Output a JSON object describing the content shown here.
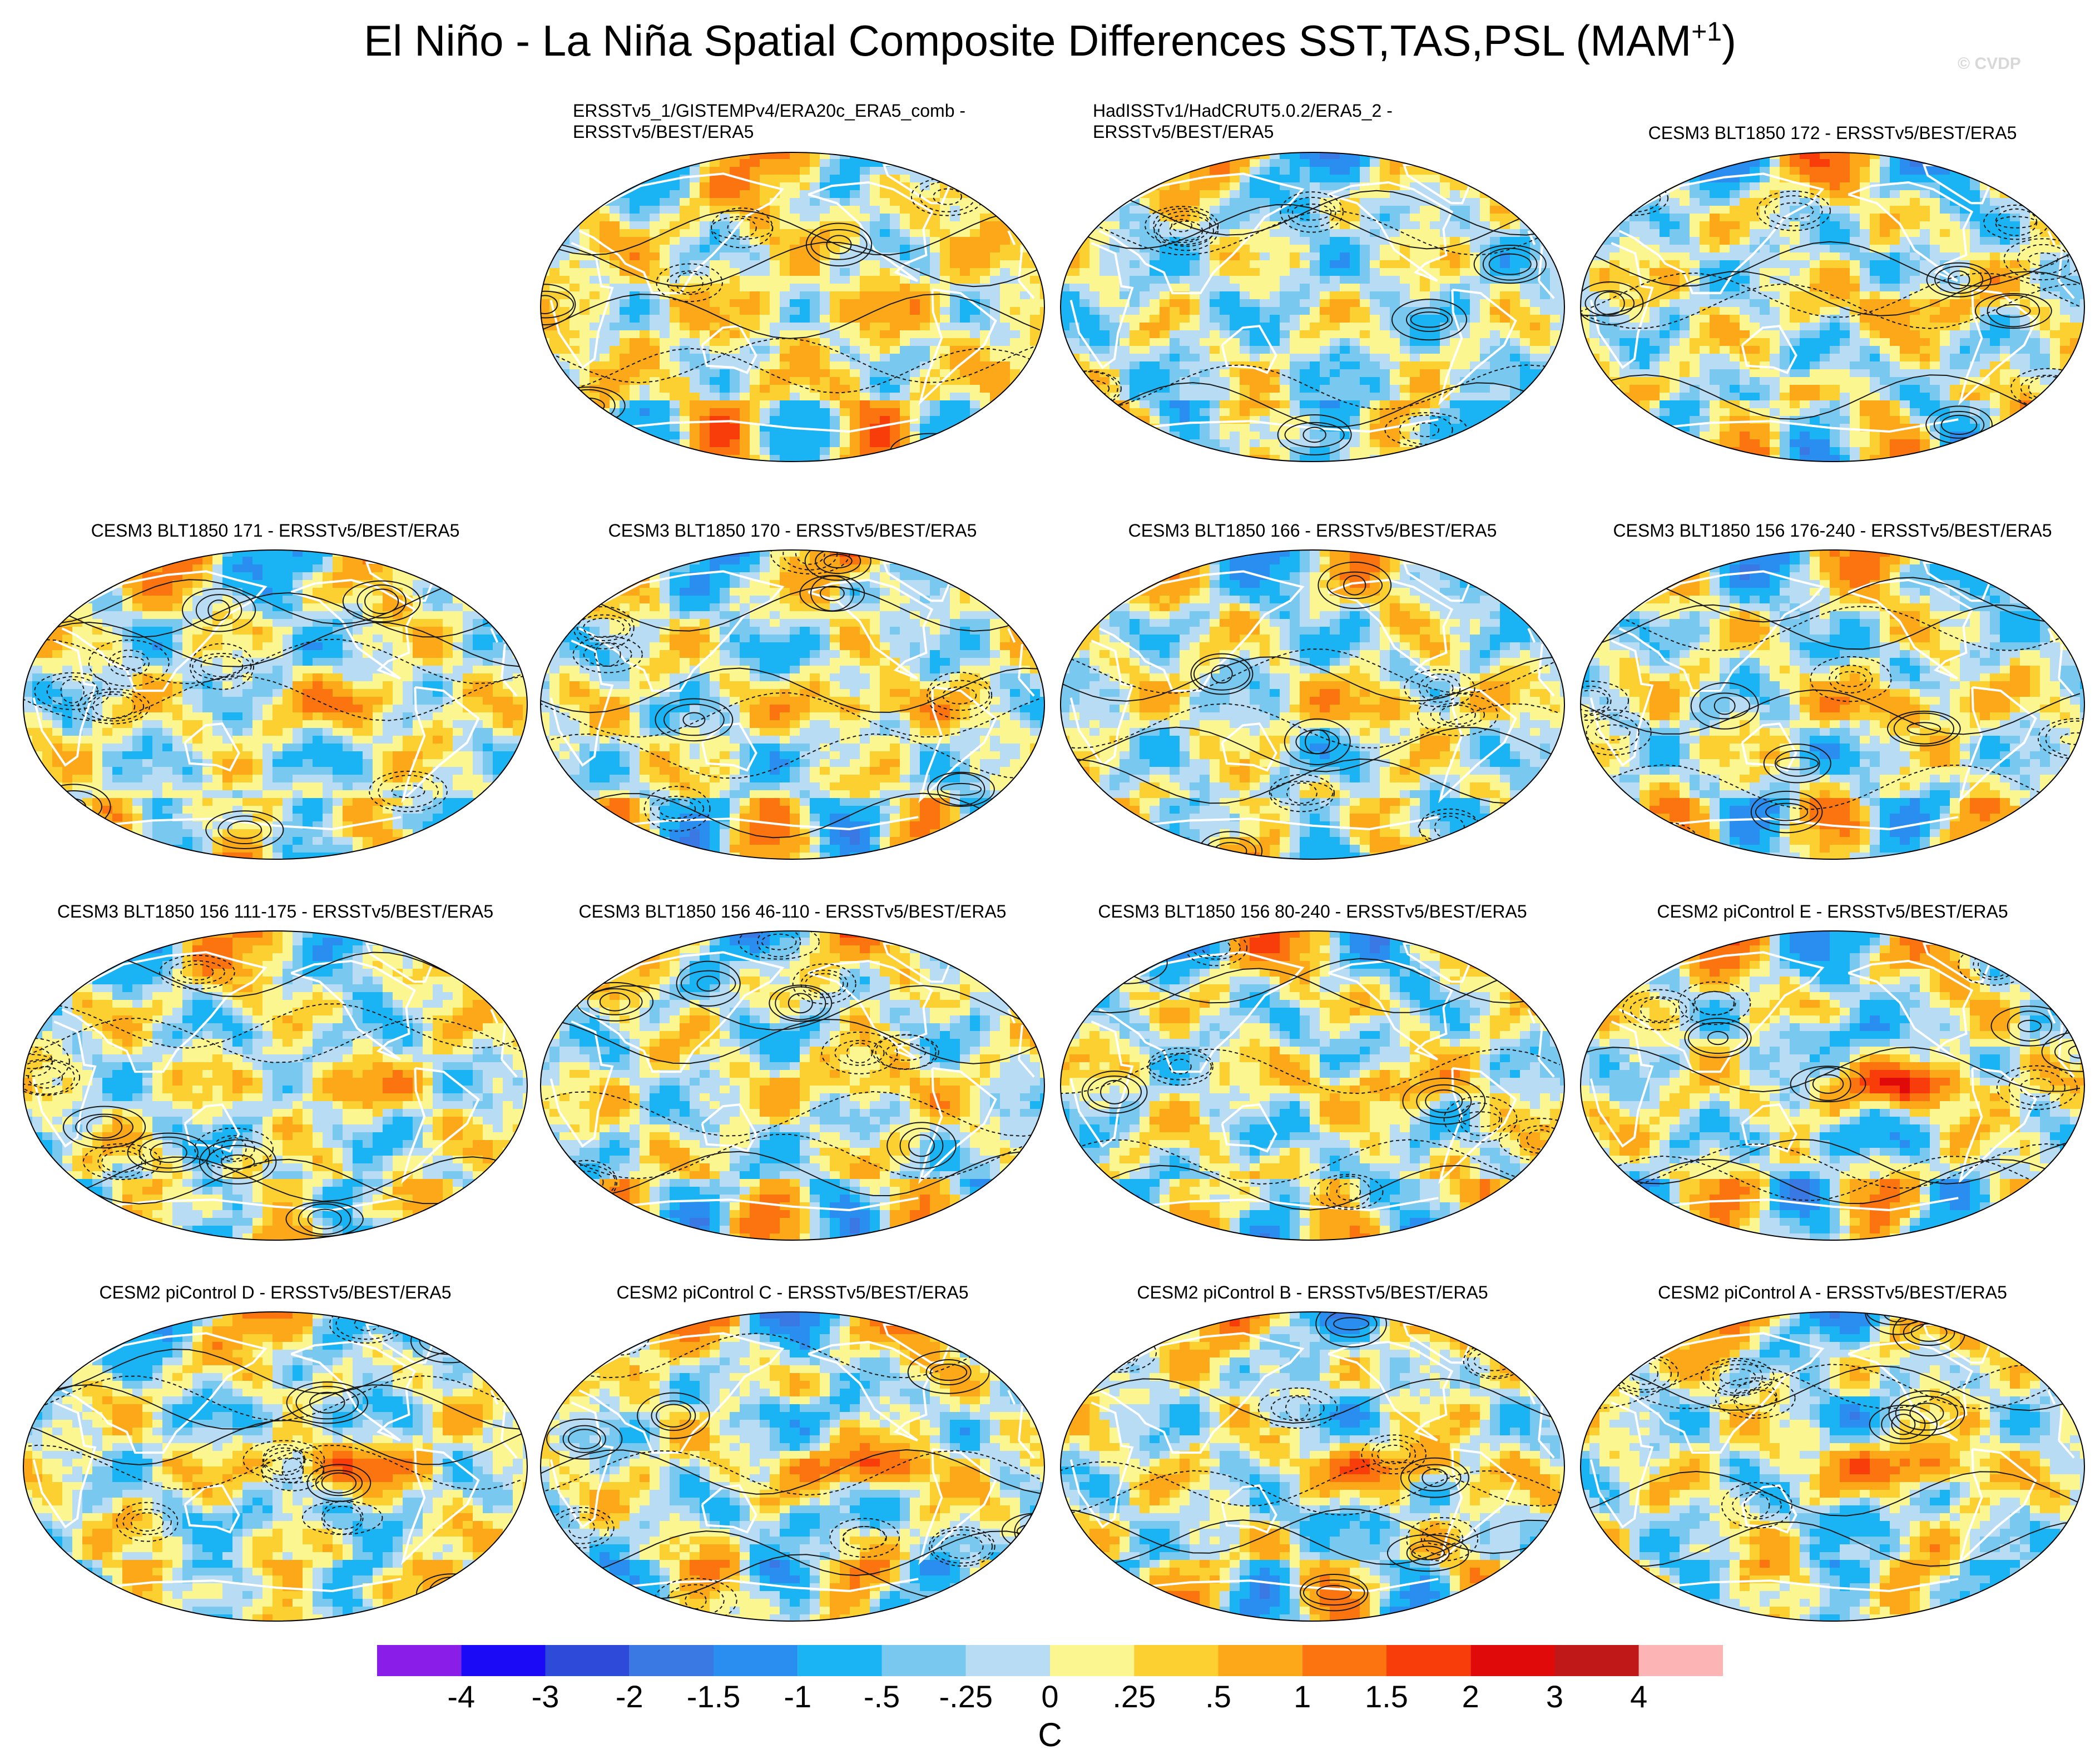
{
  "title_main": "El Niño - La Niña Spatial Composite Differences SST,TAS,PSL (MAM",
  "title_sup": "+1",
  "title_close": ")",
  "watermark": "© CVDP",
  "panels": [
    {
      "title": "ERSSTv5_1/GISTEMPv4/ERA20c_ERA5_comb -\nERSSTv5/BEST/ERA5",
      "row": 0,
      "col": 1,
      "seed": 11,
      "bias": 0.15,
      "enso": 0.2
    },
    {
      "title": "HadISSTv1/HadCRUT5.0.2/ERA5_2 -\nERSSTv5/BEST/ERA5",
      "row": 0,
      "col": 2,
      "seed": 23,
      "bias": -0.1,
      "enso": 0.05
    },
    {
      "title": "CESM3 BLT1850 172 - ERSSTv5/BEST/ERA5",
      "row": 0,
      "col": 3,
      "seed": 37,
      "bias": 0.0,
      "enso": 0.5
    },
    {
      "title": "CESM3 BLT1850 171 - ERSSTv5/BEST/ERA5",
      "row": 1,
      "col": 0,
      "seed": 41,
      "bias": 0.0,
      "enso": 0.55
    },
    {
      "title": "CESM3 BLT1850 170 - ERSSTv5/BEST/ERA5",
      "row": 1,
      "col": 1,
      "seed": 53,
      "bias": 0.0,
      "enso": 0.6
    },
    {
      "title": "CESM3 BLT1850 166 - ERSSTv5/BEST/ERA5",
      "row": 1,
      "col": 2,
      "seed": 61,
      "bias": 0.0,
      "enso": 0.5
    },
    {
      "title": "CESM3 BLT1850 156 176-240 - ERSSTv5/BEST/ERA5",
      "row": 1,
      "col": 3,
      "seed": 71,
      "bias": 0.0,
      "enso": 0.6
    },
    {
      "title": "CESM3 BLT1850 156 111-175 - ERSSTv5/BEST/ERA5",
      "row": 2,
      "col": 0,
      "seed": 83,
      "bias": 0.0,
      "enso": 0.45
    },
    {
      "title": "CESM3 BLT1850 156 46-110 - ERSSTv5/BEST/ERA5",
      "row": 2,
      "col": 1,
      "seed": 97,
      "bias": 0.0,
      "enso": 0.45
    },
    {
      "title": "CESM3 BLT1850 156 80-240 - ERSSTv5/BEST/ERA5",
      "row": 2,
      "col": 2,
      "seed": 101,
      "bias": 0.0,
      "enso": 0.5
    },
    {
      "title": "CESM2 piControl E - ERSSTv5/BEST/ERA5",
      "row": 2,
      "col": 3,
      "seed": 113,
      "bias": 0.0,
      "enso": 1.2
    },
    {
      "title": "CESM2 piControl D - ERSSTv5/BEST/ERA5",
      "row": 3,
      "col": 0,
      "seed": 127,
      "bias": 0.0,
      "enso": 0.9
    },
    {
      "title": "CESM2 piControl C - ERSSTv5/BEST/ERA5",
      "row": 3,
      "col": 1,
      "seed": 131,
      "bias": 0.0,
      "enso": 1.0
    },
    {
      "title": "CESM2 piControl B - ERSSTv5/BEST/ERA5",
      "row": 3,
      "col": 2,
      "seed": 139,
      "bias": 0.0,
      "enso": 0.9
    },
    {
      "title": "CESM2 piControl A - ERSSTv5/BEST/ERA5",
      "row": 3,
      "col": 3,
      "seed": 149,
      "bias": 0.0,
      "enso": 1.0
    }
  ],
  "colorbar": {
    "colors": [
      "#8a1ee8",
      "#1a0af5",
      "#2e4ad8",
      "#3a78e4",
      "#2a8ef0",
      "#1ab4f5",
      "#78c8f0",
      "#b8dcf4",
      "#fcf690",
      "#fcd030",
      "#fca818",
      "#fc7410",
      "#f83c0a",
      "#e00a0a",
      "#c01818",
      "#fcb4b4"
    ],
    "labels": [
      "-4",
      "-3",
      "-2",
      "-1.5",
      "-1",
      "-.5",
      "-.25",
      "0",
      ".25",
      ".5",
      "1",
      "1.5",
      "2",
      "3",
      "4"
    ],
    "unit": "C"
  }
}
